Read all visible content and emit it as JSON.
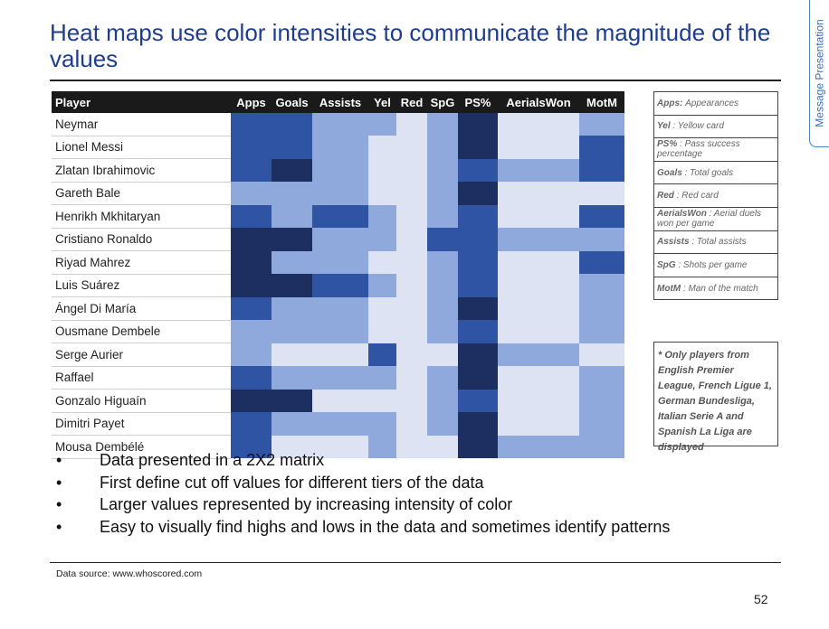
{
  "title": "Heat maps use color intensities to communicate the magnitude of the values",
  "side_tab": "Message Presentation",
  "table": {
    "columns": [
      "Player",
      "Apps",
      "Goals",
      "Assists",
      "Yel",
      "Red",
      "SpG",
      "PS%",
      "AerialsWon",
      "MotM"
    ],
    "rows": [
      {
        "player": "Neymar",
        "levels": [
          4,
          4,
          2,
          2,
          1,
          2,
          5,
          1,
          2
        ]
      },
      {
        "player": "Lionel Messi",
        "levels": [
          4,
          4,
          2,
          1,
          1,
          2,
          5,
          1,
          4
        ]
      },
      {
        "player": "Zlatan Ibrahimovic",
        "levels": [
          4,
          5,
          2,
          1,
          1,
          2,
          4,
          2,
          4
        ]
      },
      {
        "player": "Gareth Bale",
        "levels": [
          2,
          2,
          2,
          1,
          1,
          2,
          5,
          1,
          1
        ]
      },
      {
        "player": "Henrikh Mkhitaryan",
        "levels": [
          4,
          2,
          4,
          2,
          1,
          2,
          4,
          1,
          4
        ]
      },
      {
        "player": "Cristiano Ronaldo",
        "levels": [
          5,
          5,
          2,
          2,
          1,
          4,
          4,
          2,
          2
        ]
      },
      {
        "player": "Riyad Mahrez",
        "levels": [
          5,
          2,
          2,
          1,
          1,
          2,
          4,
          1,
          4
        ]
      },
      {
        "player": "Luis Suárez",
        "levels": [
          5,
          5,
          4,
          2,
          1,
          2,
          4,
          1,
          2
        ]
      },
      {
        "player": "Ángel Di María",
        "levels": [
          4,
          2,
          2,
          1,
          1,
          2,
          5,
          1,
          2
        ]
      },
      {
        "player": "Ousmane Dembele",
        "levels": [
          2,
          2,
          2,
          1,
          1,
          2,
          4,
          1,
          2
        ]
      },
      {
        "player": "Serge Aurier",
        "levels": [
          2,
          1,
          1,
          4,
          1,
          1,
          5,
          2,
          1
        ]
      },
      {
        "player": "Raffael",
        "levels": [
          4,
          2,
          2,
          2,
          1,
          2,
          5,
          1,
          2
        ]
      },
      {
        "player": "Gonzalo Higuaín",
        "levels": [
          5,
          5,
          1,
          1,
          1,
          2,
          4,
          1,
          2
        ]
      },
      {
        "player": "Dimitri Payet",
        "levels": [
          4,
          2,
          2,
          2,
          1,
          2,
          5,
          1,
          2
        ]
      },
      {
        "player": "Mousa Dembélé",
        "levels": [
          4,
          1,
          1,
          2,
          1,
          1,
          5,
          2,
          2
        ]
      }
    ],
    "colors": {
      "1": "#dde3f2",
      "2": "#8fa9dc",
      "3": "#b4c5e8",
      "4": "#2f54a3",
      "5": "#1c2f60"
    }
  },
  "legend": [
    {
      "key": "Apps:",
      "desc": "Appearances"
    },
    {
      "key": "Yel",
      "desc": ": Yellow card"
    },
    {
      "key": "PS%",
      "desc": ": Pass success percentage"
    },
    {
      "key": "Goals",
      "desc": ": Total goals"
    },
    {
      "key": "Red",
      "desc": ": Red card"
    },
    {
      "key": "AerialsWon",
      "desc": ": Aerial duels won per game"
    },
    {
      "key": "Assists",
      "desc": ": Total assists"
    },
    {
      "key": "SpG",
      "desc": ": Shots per game"
    },
    {
      "key": "MotM",
      "desc": ": Man of the match"
    }
  ],
  "note": "* Only players from English Premier League, French Ligue 1, German Bundesliga, Italian Serie A and Spanish La Liga are displayed",
  "bullets": [
    "Data presented in a 2X2 matrix",
    "First define cut off values for different tiers of the data",
    "Larger values represented by increasing intensity of color",
    "Easy to visually find highs and lows in the data and sometimes identify patterns"
  ],
  "source": "Data source: www.whoscored.com",
  "page_number": "52"
}
